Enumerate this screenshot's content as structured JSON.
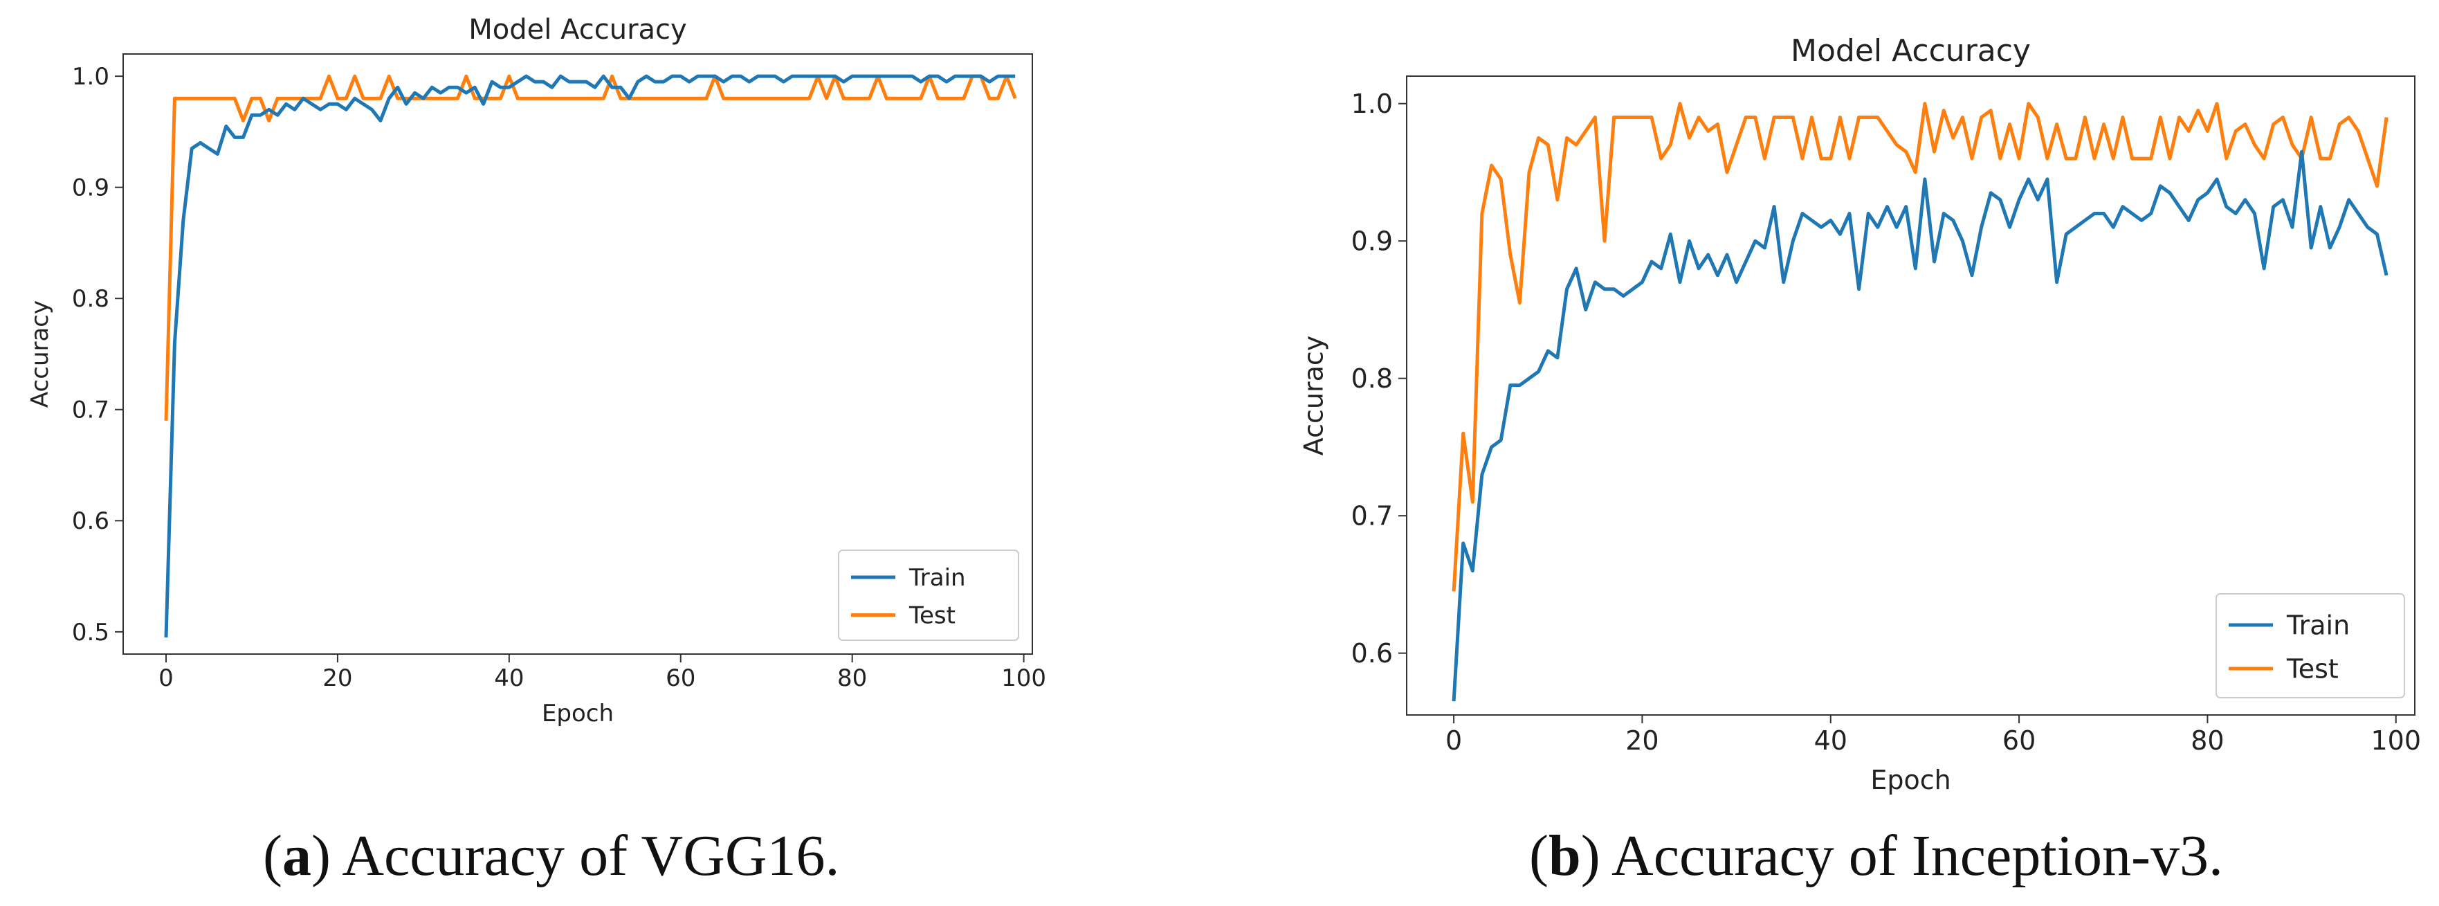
{
  "colors": {
    "train": "#1f77b4",
    "test": "#ff7f0e",
    "axis": "#333333"
  },
  "chart_data": [
    {
      "type": "line",
      "title": "Model Accuracy",
      "xlabel": "Epoch",
      "ylabel": "Accuracy",
      "xlim": [
        -5,
        101
      ],
      "ylim": [
        0.48,
        1.02
      ],
      "xticks": [
        0,
        20,
        40,
        60,
        80,
        100
      ],
      "yticks": [
        0.5,
        0.6,
        0.7,
        0.8,
        0.9,
        1.0
      ],
      "ytick_labels": [
        "0.5",
        "0.6",
        "0.7",
        "0.8",
        "0.9",
        "1.0"
      ],
      "legend_position": "lower-right",
      "caption": {
        "letter": "a",
        "open": "(",
        "rest": ") Accuracy of VGG16."
      },
      "series": [
        {
          "name": "Train",
          "color": "#1f77b4",
          "values": [
            0.495,
            0.76,
            0.87,
            0.935,
            0.94,
            0.935,
            0.93,
            0.955,
            0.945,
            0.945,
            0.965,
            0.965,
            0.97,
            0.965,
            0.975,
            0.97,
            0.98,
            0.975,
            0.97,
            0.975,
            0.975,
            0.97,
            0.98,
            0.975,
            0.97,
            0.96,
            0.98,
            0.99,
            0.975,
            0.985,
            0.98,
            0.99,
            0.985,
            0.99,
            0.99,
            0.985,
            0.99,
            0.975,
            0.995,
            0.99,
            0.99,
            0.995,
            1.0,
            0.995,
            0.995,
            0.99,
            1.0,
            0.995,
            0.995,
            0.995,
            0.99,
            1.0,
            0.99,
            0.99,
            0.98,
            0.995,
            1.0,
            0.995,
            0.995,
            1.0,
            1.0,
            0.995,
            1.0,
            1.0,
            1.0,
            0.995,
            1.0,
            1.0,
            0.995,
            1.0,
            1.0,
            1.0,
            0.995,
            1.0,
            1.0,
            1.0,
            1.0,
            1.0,
            1.0,
            0.995,
            1.0,
            1.0,
            1.0,
            1.0,
            1.0,
            1.0,
            1.0,
            1.0,
            0.995,
            1.0,
            1.0,
            0.995,
            1.0,
            1.0,
            1.0,
            1.0,
            0.995,
            1.0,
            1.0,
            1.0
          ]
        },
        {
          "name": "Test",
          "color": "#ff7f0e",
          "values": [
            0.69,
            0.98,
            0.98,
            0.98,
            0.98,
            0.98,
            0.98,
            0.98,
            0.98,
            0.96,
            0.98,
            0.98,
            0.96,
            0.98,
            0.98,
            0.98,
            0.98,
            0.98,
            0.98,
            1.0,
            0.98,
            0.98,
            1.0,
            0.98,
            0.98,
            0.98,
            1.0,
            0.98,
            0.98,
            0.98,
            0.98,
            0.98,
            0.98,
            0.98,
            0.98,
            1.0,
            0.98,
            0.98,
            0.98,
            0.98,
            1.0,
            0.98,
            0.98,
            0.98,
            0.98,
            0.98,
            0.98,
            0.98,
            0.98,
            0.98,
            0.98,
            0.98,
            1.0,
            0.98,
            0.98,
            0.98,
            0.98,
            0.98,
            0.98,
            0.98,
            0.98,
            0.98,
            0.98,
            0.98,
            1.0,
            0.98,
            0.98,
            0.98,
            0.98,
            0.98,
            0.98,
            0.98,
            0.98,
            0.98,
            0.98,
            0.98,
            1.0,
            0.98,
            1.0,
            0.98,
            0.98,
            0.98,
            0.98,
            1.0,
            0.98,
            0.98,
            0.98,
            0.98,
            0.98,
            1.0,
            0.98,
            0.98,
            0.98,
            0.98,
            1.0,
            1.0,
            0.98,
            0.98,
            1.0,
            0.98
          ]
        }
      ]
    },
    {
      "type": "line",
      "title": "Model Accuracy",
      "xlabel": "Epoch",
      "ylabel": "Accuracy",
      "xlim": [
        -5,
        102
      ],
      "ylim": [
        0.555,
        1.02
      ],
      "xticks": [
        0,
        20,
        40,
        60,
        80,
        100
      ],
      "yticks": [
        0.6,
        0.7,
        0.8,
        0.9,
        1.0
      ],
      "ytick_labels": [
        "0.6",
        "0.7",
        "0.8",
        "0.9",
        "1.0"
      ],
      "legend_position": "lower-right",
      "caption": {
        "letter": "b",
        "open": "(",
        "rest": ") Accuracy of Inception-v3."
      },
      "series": [
        {
          "name": "Train",
          "color": "#1f77b4",
          "values": [
            0.565,
            0.68,
            0.66,
            0.73,
            0.75,
            0.755,
            0.795,
            0.795,
            0.8,
            0.805,
            0.82,
            0.815,
            0.865,
            0.88,
            0.85,
            0.87,
            0.865,
            0.865,
            0.86,
            0.865,
            0.87,
            0.885,
            0.88,
            0.905,
            0.87,
            0.9,
            0.88,
            0.89,
            0.875,
            0.89,
            0.87,
            0.885,
            0.9,
            0.895,
            0.925,
            0.87,
            0.9,
            0.92,
            0.915,
            0.91,
            0.915,
            0.905,
            0.92,
            0.865,
            0.92,
            0.91,
            0.925,
            0.91,
            0.925,
            0.88,
            0.945,
            0.885,
            0.92,
            0.915,
            0.9,
            0.875,
            0.91,
            0.935,
            0.93,
            0.91,
            0.93,
            0.945,
            0.93,
            0.945,
            0.87,
            0.905,
            0.91,
            0.915,
            0.92,
            0.92,
            0.91,
            0.925,
            0.92,
            0.915,
            0.92,
            0.94,
            0.935,
            0.925,
            0.915,
            0.93,
            0.935,
            0.945,
            0.925,
            0.92,
            0.93,
            0.92,
            0.88,
            0.925,
            0.93,
            0.91,
            0.965,
            0.895,
            0.925,
            0.895,
            0.91,
            0.93,
            0.92,
            0.91,
            0.905,
            0.875
          ]
        },
        {
          "name": "Test",
          "color": "#ff7f0e",
          "values": [
            0.645,
            0.76,
            0.71,
            0.92,
            0.955,
            0.945,
            0.89,
            0.855,
            0.95,
            0.975,
            0.97,
            0.93,
            0.975,
            0.97,
            0.98,
            0.99,
            0.9,
            0.99,
            0.99,
            0.99,
            0.99,
            0.99,
            0.96,
            0.97,
            1.0,
            0.975,
            0.99,
            0.98,
            0.985,
            0.95,
            0.97,
            0.99,
            0.99,
            0.96,
            0.99,
            0.99,
            0.99,
            0.96,
            0.99,
            0.96,
            0.96,
            0.99,
            0.96,
            0.99,
            0.99,
            0.99,
            0.98,
            0.97,
            0.965,
            0.95,
            1.0,
            0.965,
            0.995,
            0.975,
            0.99,
            0.96,
            0.99,
            0.995,
            0.96,
            0.985,
            0.96,
            1.0,
            0.99,
            0.96,
            0.985,
            0.96,
            0.96,
            0.99,
            0.96,
            0.985,
            0.96,
            0.99,
            0.96,
            0.96,
            0.96,
            0.99,
            0.96,
            0.99,
            0.98,
            0.995,
            0.98,
            1.0,
            0.96,
            0.98,
            0.985,
            0.97,
            0.96,
            0.985,
            0.99,
            0.97,
            0.96,
            0.99,
            0.96,
            0.96,
            0.985,
            0.99,
            0.98,
            0.96,
            0.94,
            0.99
          ]
        }
      ]
    }
  ]
}
